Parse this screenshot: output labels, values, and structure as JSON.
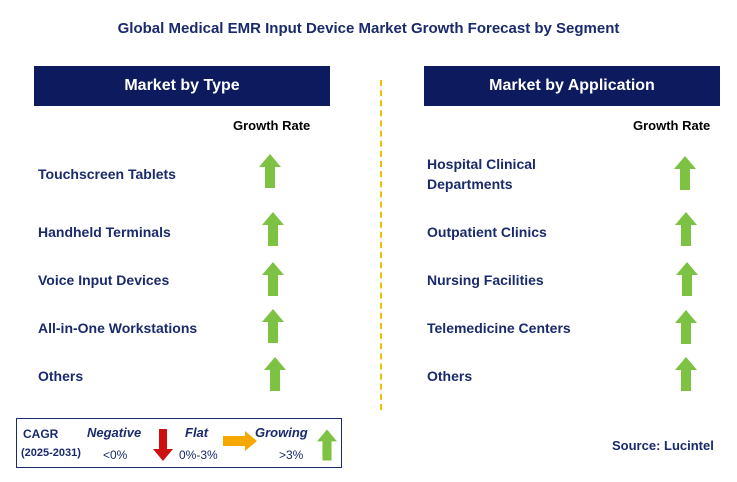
{
  "title": "Global Medical EMR Input Device Market Growth Forecast by Segment",
  "panels": [
    {
      "header": "Market by Type",
      "growth_label": "Growth Rate",
      "items": [
        {
          "label": "Touchscreen Tablets",
          "trend": "growing"
        },
        {
          "label": "Handheld Terminals",
          "trend": "growing"
        },
        {
          "label": "Voice Input Devices",
          "trend": "growing"
        },
        {
          "label": "All-in-One Workstations",
          "trend": "growing"
        },
        {
          "label": "Others",
          "trend": "growing"
        }
      ]
    },
    {
      "header": "Market by Application",
      "growth_label": "Growth Rate",
      "items": [
        {
          "label_line1": "Hospital Clinical",
          "label_line2": "Departments",
          "trend": "growing"
        },
        {
          "label": "Outpatient Clinics",
          "trend": "growing"
        },
        {
          "label": "Nursing Facilities",
          "trend": "growing"
        },
        {
          "label": "Telemedicine Centers",
          "trend": "growing"
        },
        {
          "label": "Others",
          "trend": "growing"
        }
      ]
    }
  ],
  "legend": {
    "cagr_label": "CAGR",
    "period": "(2025-2031)",
    "negative": {
      "label": "Negative",
      "range": "<0%"
    },
    "flat": {
      "label": "Flat",
      "range": "0%-3%"
    },
    "growing": {
      "label": "Growing",
      "range": ">3%"
    }
  },
  "source": "Source: Lucintel",
  "colors": {
    "header_bg": "#0d1a5e",
    "title_text": "#1a2a6c",
    "growing": "#7dc242",
    "negative": "#cc1111",
    "flat": "#f5a800",
    "divider": "#f0c000"
  }
}
